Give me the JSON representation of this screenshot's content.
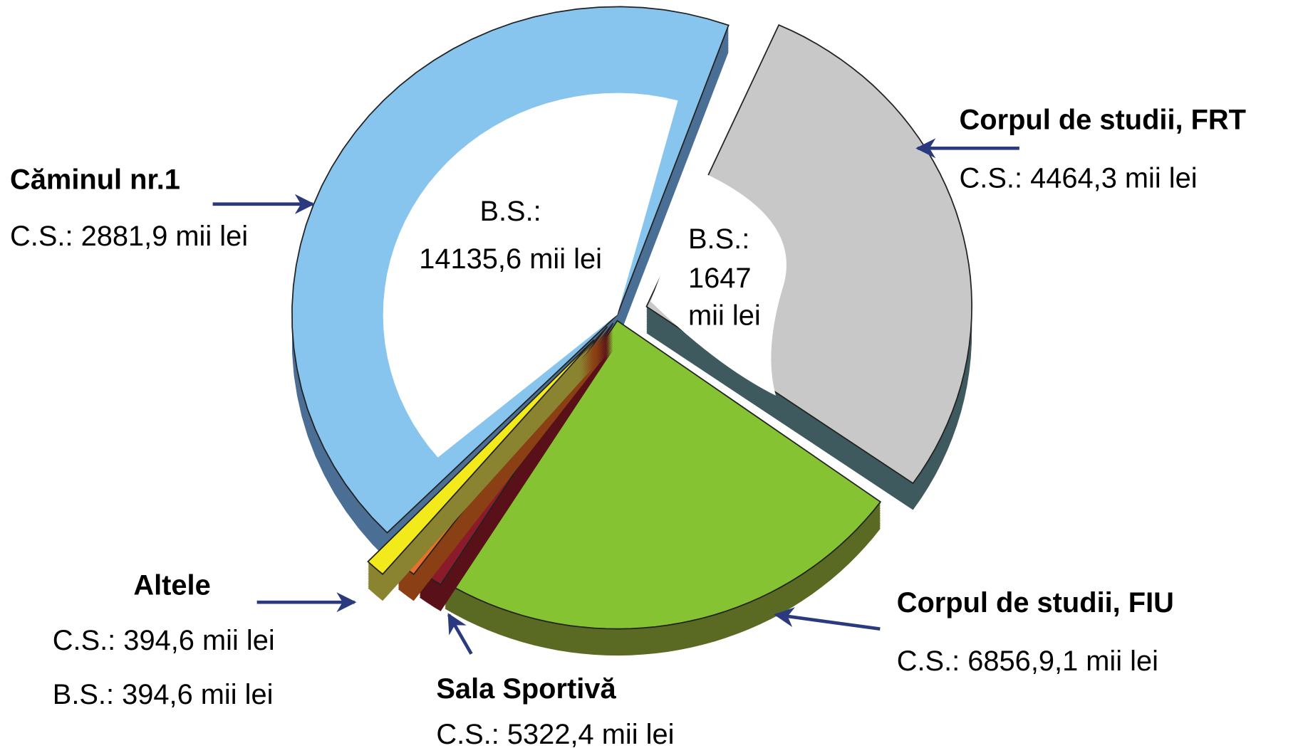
{
  "labels": [
    {
      "title": "Căminul nr.1",
      "lines": [
        "C.S.: 2881,9 mii lei"
      ]
    },
    {
      "title": "Corpul de studii, FRT",
      "lines": [
        "C.S.: 4464,3 mii lei"
      ]
    },
    {
      "title": "Corpul de studii, FIU",
      "lines": [
        "C.S.: 6856,9,1 mii lei"
      ]
    },
    {
      "title": "Sala Sportivă",
      "lines": [
        "C.S.: 5322,4 mii lei"
      ]
    },
    {
      "title": "Altele",
      "lines": [
        "C.S.: 394,6 mii lei",
        "B.S.: 394,6 mii lei"
      ]
    }
  ],
  "inner_labels": [
    [
      "B.S.:",
      "14135,6 mii lei"
    ],
    [
      "B.S.:",
      "1647",
      "mii lei"
    ]
  ]
}
